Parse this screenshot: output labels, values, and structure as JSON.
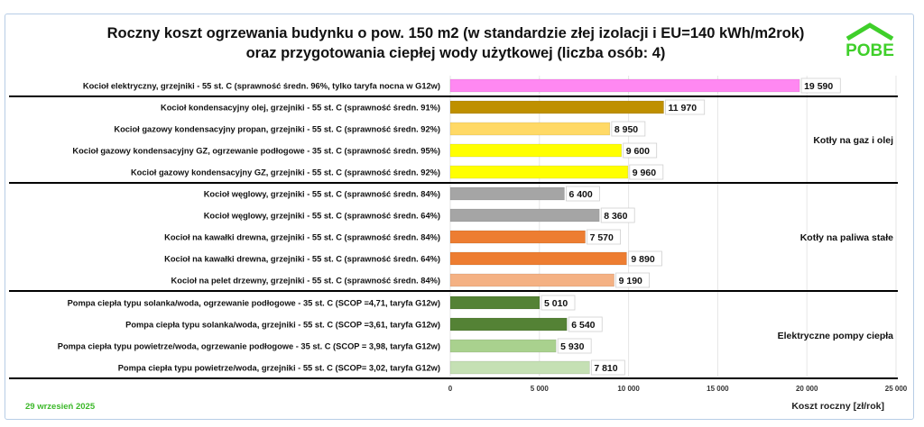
{
  "logo_text": "POBE",
  "date": "29 wrzesień 2025",
  "chart_data": {
    "type": "bar",
    "orientation": "horizontal",
    "title": [
      "Roczny koszt ogrzewania budynku o pow. 150 m2 (w standardzie złej izolacji i EU=140 kWh/m2rok)",
      "oraz przygotowania ciepłej wody użytkowej (liczba osób: 4)"
    ],
    "xlabel": "Koszt roczny [zł/rok]",
    "xlim": [
      0,
      25000
    ],
    "xticks": [
      0,
      5000,
      10000,
      15000,
      20000,
      25000
    ],
    "xtick_labels": [
      "0",
      "5 000",
      "10 000",
      "15 000",
      "20 000",
      "25 000"
    ],
    "grid": true,
    "groups": [
      {
        "name": "",
        "start": 0,
        "end": 0
      },
      {
        "name": "Kotły na gaz i olej",
        "start": 1,
        "end": 4
      },
      {
        "name": "Kotły na paliwa stałe",
        "start": 5,
        "end": 9
      },
      {
        "name": "Elektryczne pompy ciepła",
        "start": 10,
        "end": 13
      }
    ],
    "bars": [
      {
        "label": "Kocioł  elektryczny,  grzejniki - 55 st. C  (sprawność średn. 96%, tylko taryfa nocna w G12w)",
        "value": 19590,
        "value_label": "19 590",
        "color": "#ff88f2"
      },
      {
        "label": "Kocioł  kondensacyjny olej,  grzejniki - 55 st. C (sprawność średn. 91%)",
        "value": 11970,
        "value_label": "11 970",
        "color": "#bf9000"
      },
      {
        "label": "Kocioł gazowy kondensacyjny propan, grzejniki - 55 st. C (sprawność średn. 92%)",
        "value": 8950,
        "value_label": "8 950",
        "color": "#ffd966"
      },
      {
        "label": "Kocioł gazowy kondensacyjny GZ, ogrzewanie podłogowe - 35 st. C (sprawność średn. 95%)",
        "value": 9600,
        "value_label": "9 600",
        "color": "#ffff00"
      },
      {
        "label": "Kocioł gazowy kondensacyjny GZ, grzejniki - 55 st. C (sprawność średn. 92%)",
        "value": 9960,
        "value_label": "9 960",
        "color": "#ffff00"
      },
      {
        "label": "Kocioł węglowy,  grzejniki - 55 st. C (sprawność średn. 84%)",
        "value": 6400,
        "value_label": "6 400",
        "color": "#a5a5a5"
      },
      {
        "label": "Kocioł węglowy,  grzejniki - 55 st. C (sprawność średn. 64%)",
        "value": 8360,
        "value_label": "8 360",
        "color": "#a5a5a5"
      },
      {
        "label": "Kocioł na kawałki drewna, grzejniki - 55 st. C (sprawność średn. 84%)",
        "value": 7570,
        "value_label": "7 570",
        "color": "#ed7d31"
      },
      {
        "label": "Kocioł na kawałki drewna, grzejniki - 55 st. C (sprawność średn. 64%)",
        "value": 9890,
        "value_label": "9 890",
        "color": "#ed7d31"
      },
      {
        "label": "Kocioł na pelet drzewny, grzejniki - 55 st. C (sprawność średn. 84%)",
        "value": 9190,
        "value_label": "9 190",
        "color": "#f4b183"
      },
      {
        "label": "Pompa ciepła typu solanka/woda, ogrzewanie podłogowe - 35 st. C (SCOP =4,71, taryfa G12w)",
        "value": 5010,
        "value_label": "5 010",
        "color": "#548235"
      },
      {
        "label": "Pompa ciepła typu solanka/woda, grzejniki - 55 st. C (SCOP =3,61, taryfa G12w)",
        "value": 6540,
        "value_label": "6 540",
        "color": "#548235"
      },
      {
        "label": "Pompa ciepła typu powietrze/woda, ogrzewanie podłogowe - 35 st. C (SCOP = 3,98, taryfa G12w)",
        "value": 5930,
        "value_label": "5 930",
        "color": "#a9d18e"
      },
      {
        "label": "Pompa ciepła typu powietrze/woda, grzejniki - 55 st. C (SCOP= 3,02, taryfa G12w)",
        "value": 7810,
        "value_label": "7 810",
        "color": "#c5e0b4"
      }
    ]
  }
}
